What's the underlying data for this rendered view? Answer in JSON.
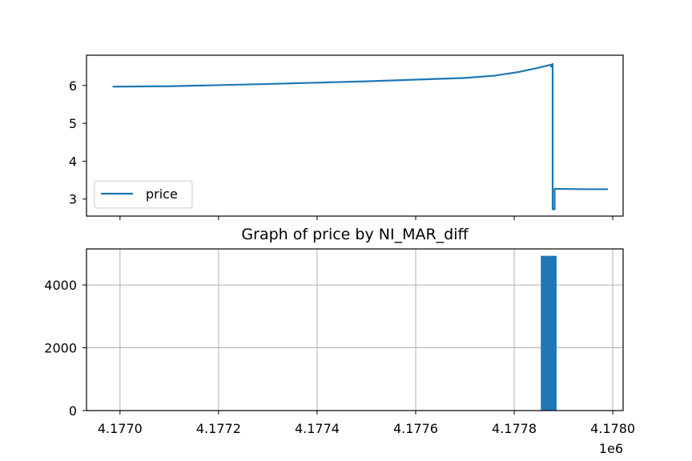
{
  "chart_data": [
    {
      "type": "line",
      "title": "",
      "xlabel": "",
      "ylabel": "",
      "ylim": [
        2.55,
        6.8
      ],
      "xlim": [
        4.176932,
        4.178021
      ],
      "yticks": [
        3,
        4,
        5,
        6
      ],
      "grid": false,
      "legend_position": "lower-left",
      "series": [
        {
          "name": "price",
          "color": "#1f77b4",
          "x": [
            4.176985,
            4.1771,
            4.1773,
            4.1775,
            4.1777,
            4.17776,
            4.17781,
            4.17785,
            4.177868,
            4.177875,
            4.177875,
            4.177878,
            4.177878,
            4.177882,
            4.177882,
            4.17795,
            4.17799
          ],
          "y": [
            5.97,
            5.98,
            6.04,
            6.11,
            6.2,
            6.26,
            6.36,
            6.47,
            6.53,
            6.55,
            6.5,
            6.57,
            2.73,
            2.73,
            3.27,
            3.26,
            3.26
          ]
        }
      ]
    },
    {
      "type": "bar",
      "title": "Graph of price by NI_MAR_diff",
      "xlabel": "",
      "ylabel": "",
      "x_offset_label": "1e6",
      "xlim": [
        4.176932,
        4.178021
      ],
      "ylim": [
        0,
        5150
      ],
      "xticks": [
        4.177,
        4.1772,
        4.1774,
        4.1776,
        4.1778,
        4.178
      ],
      "xtick_labels": [
        "4.1770",
        "4.1772",
        "4.1774",
        "4.1776",
        "4.1778",
        "4.1780"
      ],
      "yticks": [
        0,
        2000,
        4000
      ],
      "grid": true,
      "bars": [
        {
          "x_start": 4.177854,
          "x_end": 4.177886,
          "value": 4930,
          "color": "#1f77b4"
        }
      ]
    }
  ]
}
